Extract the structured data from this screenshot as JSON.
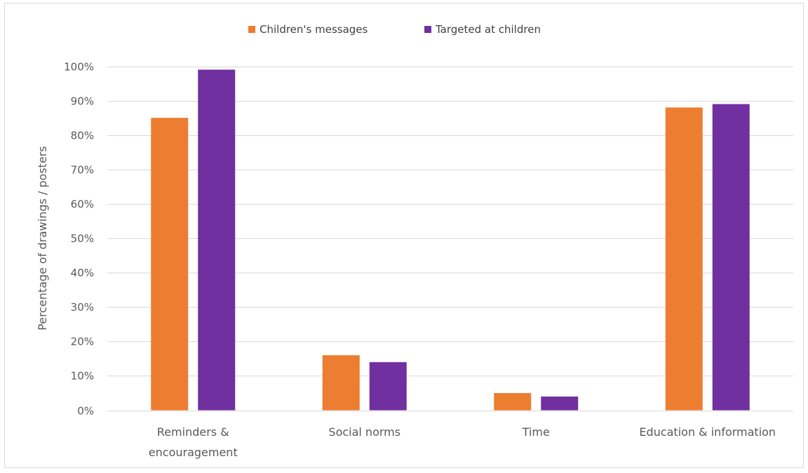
{
  "chart_data": {
    "type": "bar",
    "categories": [
      [
        "Reminders &",
        "encouragement"
      ],
      [
        "Social norms"
      ],
      [
        "Time"
      ],
      [
        "Education & information"
      ]
    ],
    "series": [
      {
        "name": "Children's messages",
        "color": "#ED7D31",
        "values": [
          85,
          16,
          5,
          88
        ]
      },
      {
        "name": "Targeted at children",
        "color": "#7030A0",
        "values": [
          99,
          14,
          4,
          89
        ]
      }
    ],
    "ylabel": "Percentage of drawings / posters",
    "xlabel": "",
    "ylim": [
      0,
      100
    ],
    "ytick_step": 10,
    "ytick_suffix": "%",
    "grid": true,
    "legend_position": "top-center"
  }
}
